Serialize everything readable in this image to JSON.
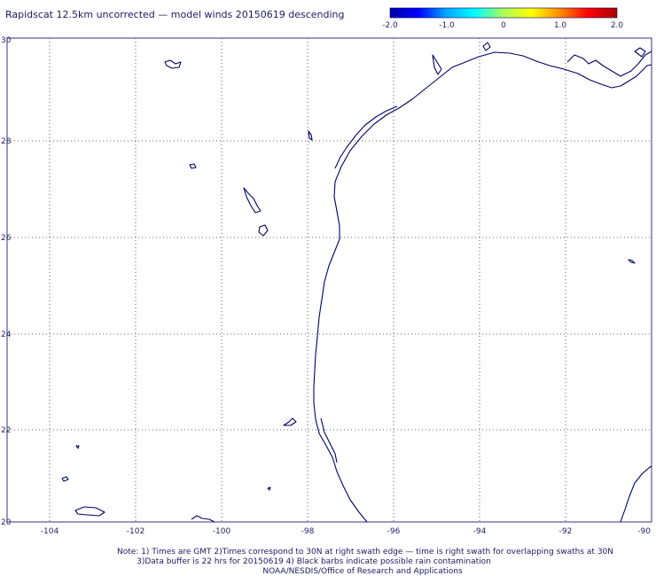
{
  "header": {
    "title": "Rapidscat 12.5km uncorrected — model winds 20150619 descending"
  },
  "colorbar": {
    "stops": [
      "#0000a8",
      "#0000ff",
      "#00aaff",
      "#00ffff",
      "#aaff55",
      "#ffff00",
      "#ff8800",
      "#ff0000",
      "#a80000"
    ],
    "labels": [
      "-2.0",
      "-1.0",
      "0",
      "1.0",
      "2.0"
    ]
  },
  "axes": {
    "lon_labels": [
      "-104",
      "-102",
      "-100",
      "-98",
      "-96",
      "-94",
      "-92",
      "-90"
    ],
    "lat_labels": [
      "20",
      "22",
      "24",
      "26",
      "28",
      "30"
    ],
    "gridline_color": "#333333"
  },
  "coast_color": "#000066",
  "notes": {
    "line1": "Note: 1) Times are GMT 2)Times correspond to 30N at right swath edge — time is right swath for overlapping swaths at 30N",
    "line2": "3)Data buffer is 22 hrs for 20150619 4) Black barbs indicate possible rain contamination",
    "line3": "NOAA/NESDIS/Office of Research and Applications"
  }
}
